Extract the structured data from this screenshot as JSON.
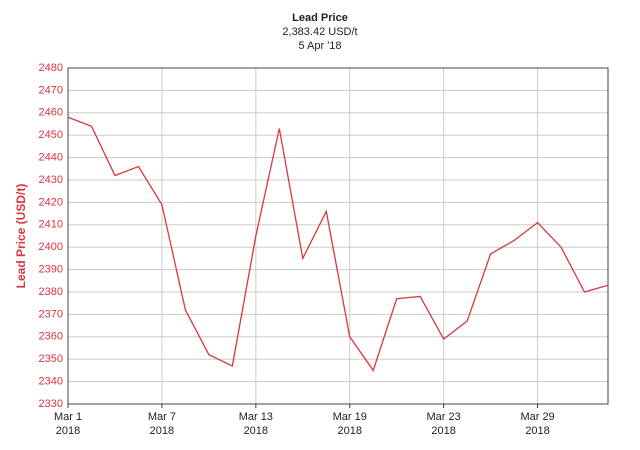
{
  "chart_data": {
    "type": "line",
    "title": "Lead Price",
    "subtitle": "2,383.42 USD/t",
    "date": "5 Apr '18",
    "y_label": "Lead Price (USD/t)",
    "categories": [
      "Mar 1 2018",
      null,
      null,
      null,
      "Mar 7 2018",
      null,
      null,
      null,
      "Mar 13 2018",
      null,
      null,
      null,
      "Mar 19 2018",
      null,
      null,
      null,
      "Mar 23 2018",
      null,
      null,
      null,
      "Mar 29 2018",
      null,
      null,
      null
    ],
    "series": [
      {
        "name": "Lead Price",
        "color": "#d9363e",
        "values": [
          2458,
          2454,
          2432,
          2436,
          2419,
          2372,
          2352,
          2347,
          2405,
          2453,
          2395,
          2416,
          2360,
          2345,
          2377,
          2378,
          2359,
          2367,
          2397,
          2403,
          2411,
          2400,
          2380,
          2383
        ]
      }
    ],
    "ylim": [
      2330,
      2480
    ],
    "yticks": [
      2330,
      2340,
      2350,
      2360,
      2370,
      2380,
      2390,
      2400,
      2410,
      2420,
      2430,
      2440,
      2450,
      2460,
      2470,
      2480
    ],
    "grid": true,
    "axis_color": "#d9363e"
  }
}
